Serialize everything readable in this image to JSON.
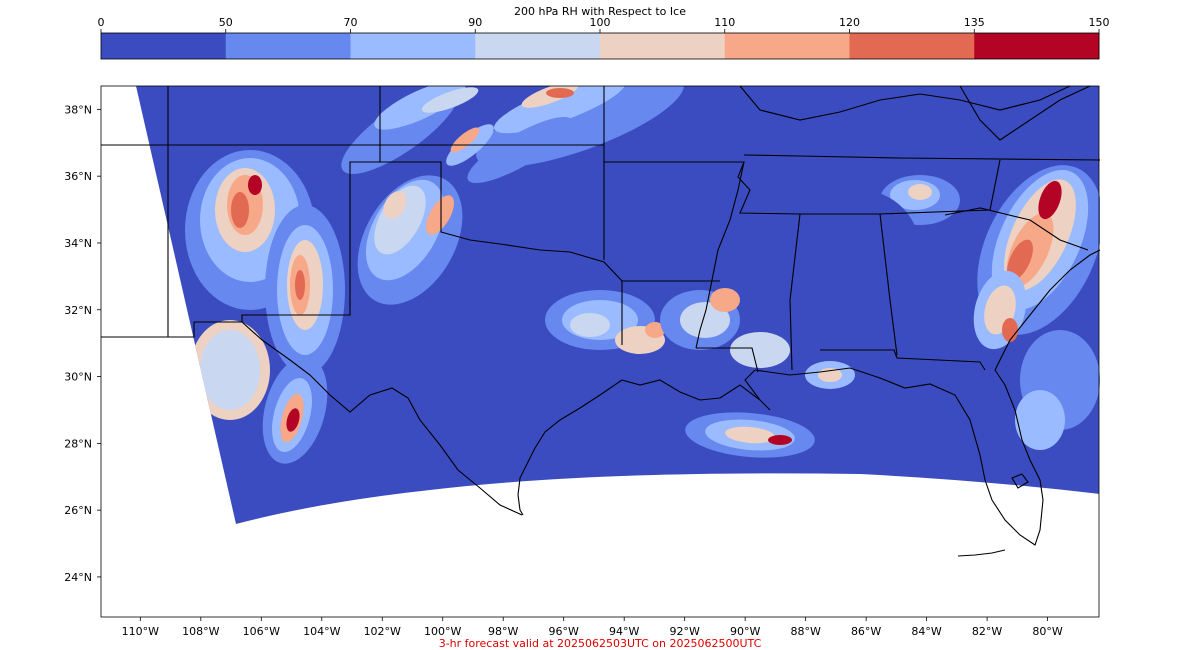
{
  "colorbar": {
    "title": "200 hPa RH with Respect to Ice",
    "levels": [
      0,
      50,
      70,
      90,
      100,
      110,
      120,
      135,
      150
    ],
    "tick_labels": [
      "0",
      "50",
      "70",
      "90",
      "100",
      "110",
      "120",
      "135",
      "150"
    ],
    "colors": [
      "#3b4cc0",
      "#6788ee",
      "#9abbff",
      "#c9d7f0",
      "#edd1c2",
      "#f7a889",
      "#e26952",
      "#b40426"
    ]
  },
  "map": {
    "lat_labels": [
      "38°N",
      "36°N",
      "34°N",
      "32°N",
      "30°N",
      "28°N",
      "26°N",
      "24°N"
    ],
    "lon_labels": [
      "110°W",
      "108°W",
      "106°W",
      "104°W",
      "102°W",
      "100°W",
      "98°W",
      "96°W",
      "94°W",
      "92°W",
      "90°W",
      "88°W",
      "86°W",
      "84°W",
      "82°W",
      "80°W"
    ],
    "extent": {
      "lon_min": -111.3,
      "lon_max": -78.3,
      "lat_min": 22.8,
      "lat_max": 38.7
    }
  },
  "footer": {
    "text": "3-hr forecast valid at 2025062503UTC on 2025062500UTC",
    "color": "#e00000"
  }
}
